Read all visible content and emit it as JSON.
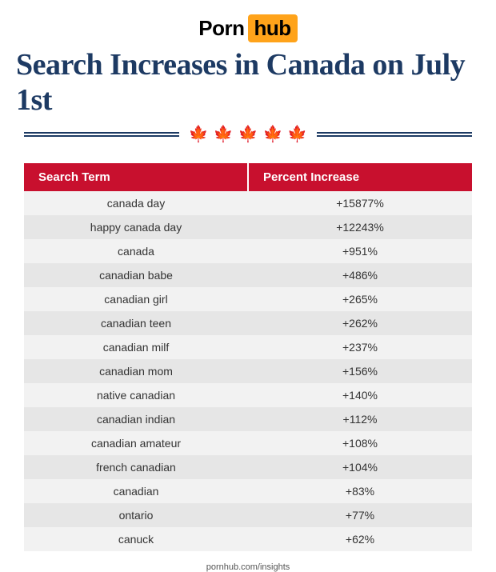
{
  "logo": {
    "part1": "Porn",
    "part2": "hub"
  },
  "title": "Search Increases in Canada on July 1st",
  "leaf_glyph": "🍁",
  "leaf_count": 5,
  "columns": [
    "Search Term",
    "Percent Increase"
  ],
  "rows": [
    {
      "term": "canada day",
      "pct": "+15877%"
    },
    {
      "term": "happy canada day",
      "pct": "+12243%"
    },
    {
      "term": "canada",
      "pct": "+951%"
    },
    {
      "term": "canadian babe",
      "pct": "+486%"
    },
    {
      "term": "canadian girl",
      "pct": "+265%"
    },
    {
      "term": "canadian teen",
      "pct": "+262%"
    },
    {
      "term": "canadian milf",
      "pct": "+237%"
    },
    {
      "term": "canadian mom",
      "pct": "+156%"
    },
    {
      "term": "native canadian",
      "pct": "+140%"
    },
    {
      "term": "canadian indian",
      "pct": "+112%"
    },
    {
      "term": "canadian amateur",
      "pct": "+108%"
    },
    {
      "term": "french canadian",
      "pct": "+104%"
    },
    {
      "term": "canadian",
      "pct": "+83%"
    },
    {
      "term": "ontario",
      "pct": "+77%"
    },
    {
      "term": "canuck",
      "pct": "+62%"
    }
  ],
  "footer": "pornhub.com/insights",
  "colors": {
    "accent_red": "#c8102e",
    "title_navy": "#1d3a63",
    "hub_orange": "#ffa31a",
    "row_even": "#f2f2f2",
    "row_odd": "#e6e6e6",
    "background": "#ffffff"
  },
  "typography": {
    "title_fontsize": 38,
    "header_cell_fontsize": 15,
    "row_fontsize": 14,
    "footer_fontsize": 11
  }
}
